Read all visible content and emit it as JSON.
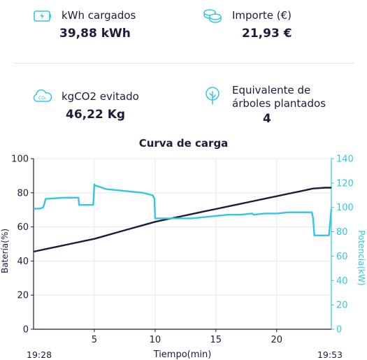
{
  "stats": {
    "kwh": {
      "label": "kWh cargados",
      "value": "39,88 kWh",
      "icon": "battery-charging-icon"
    },
    "importe": {
      "label": "Importe (€)",
      "value": "21,93 €",
      "icon": "coins-icon"
    },
    "co2": {
      "label": "kgCO2 evitado",
      "value": "46,22 Kg",
      "icon": "co2-cloud-icon"
    },
    "arboles": {
      "label_line1": "Equivalente de",
      "label_line2": "árboles plantados",
      "value": "4",
      "icon": "tree-icon"
    }
  },
  "colors": {
    "accent": "#33c6e6",
    "text": "#1b1d3a",
    "battery_line": "#1b1d3a",
    "power_line": "#33c6e6",
    "grid": "#e6e8ec"
  },
  "chart_data": {
    "type": "line",
    "title": "Curva de carga",
    "xlabel": "Tiempo(min)",
    "ylabel_left": "Batería(%)",
    "ylabel_right": "Potencia(kW)",
    "xlim": [
      0,
      24.5
    ],
    "ylim_left": [
      0,
      100
    ],
    "ylim_right": [
      0,
      140
    ],
    "xticks": [
      5,
      10,
      15,
      20
    ],
    "yticks_left": [
      0,
      20,
      40,
      60,
      80,
      100
    ],
    "yticks_right": [
      0,
      20,
      40,
      60,
      80,
      100,
      120,
      140
    ],
    "time_start": "19:28",
    "time_end": "19:53",
    "grid": true,
    "series": [
      {
        "name": "Batería(%)",
        "axis": "left",
        "x": [
          0,
          1,
          2,
          3,
          4,
          5,
          6,
          7,
          8,
          9,
          10,
          11,
          12,
          13,
          14,
          15,
          16,
          17,
          18,
          19,
          20,
          21,
          22,
          23,
          24,
          24.5
        ],
        "y": [
          45.5,
          47,
          48.5,
          50,
          51.5,
          53,
          55,
          57,
          59,
          61,
          63,
          64.5,
          66,
          67.5,
          69,
          70.5,
          72,
          73.5,
          75,
          76.5,
          78,
          79.5,
          81,
          82.5,
          83,
          83
        ]
      },
      {
        "name": "Potencia(kW)",
        "axis": "right",
        "x": [
          0,
          0.5,
          0.8,
          1.0,
          2.5,
          3.5,
          3.7,
          3.75,
          4.9,
          4.95,
          5.0,
          5.05,
          5.4,
          6.0,
          7.0,
          8.0,
          9.0,
          9.8,
          9.95,
          10.0,
          11.0,
          12.0,
          13.0,
          14.0,
          15.0,
          16.0,
          17.0,
          18.0,
          18.1,
          19.0,
          20.0,
          21.0,
          22.0,
          22.9,
          23.0,
          23.1,
          24.0,
          24.3,
          24.35,
          24.5
        ],
        "y": [
          99,
          99,
          100,
          107,
          108,
          108,
          108,
          102,
          102,
          108,
          119,
          118,
          117,
          115,
          114,
          113,
          112,
          110,
          107,
          91,
          91,
          91,
          91,
          92,
          93,
          94,
          94,
          95,
          94,
          95,
          95,
          96,
          96,
          96,
          91,
          77,
          77,
          77,
          82,
          99
        ]
      }
    ]
  }
}
